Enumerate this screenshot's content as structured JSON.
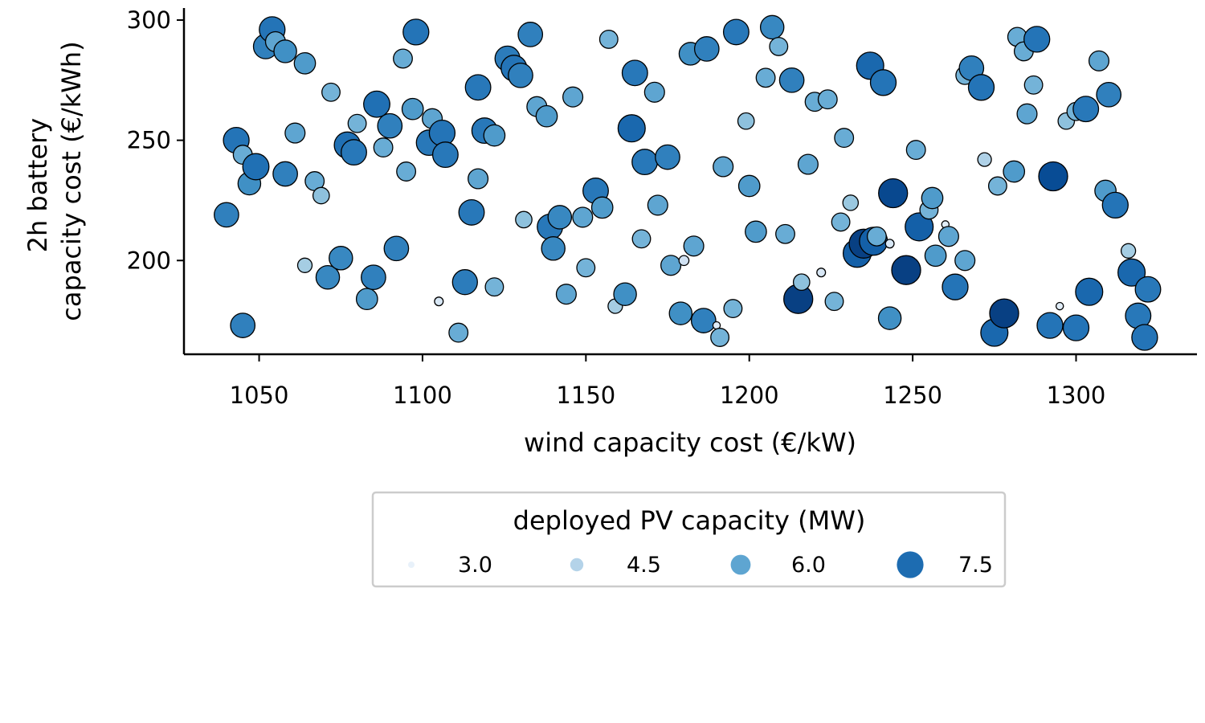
{
  "chart_data": {
    "type": "scatter",
    "xlabel": "wind capacity cost (€/kW)",
    "ylabel": [
      "2h battery",
      "capacity cost (€/kWh)"
    ],
    "xlim": [
      1027,
      1337
    ],
    "ylim": [
      161,
      305
    ],
    "xticks": [
      "1050",
      "1100",
      "1150",
      "1200",
      "1250",
      "1300"
    ],
    "yticks": [
      "200",
      "250",
      "300"
    ],
    "grid": false,
    "legend": {
      "title": "deployed PV capacity (MW)",
      "placement": "below",
      "entries": [
        {
          "label": "3.0",
          "value": 3.0
        },
        {
          "label": "4.5",
          "value": 4.5
        },
        {
          "label": "6.0",
          "value": 6.0
        },
        {
          "label": "7.5",
          "value": 7.5
        }
      ]
    },
    "color_scale": {
      "name": "Blues",
      "min": 2.5,
      "max": 9.0
    },
    "points": [
      [
        1040,
        219,
        7.0
      ],
      [
        1043,
        250,
        7.3
      ],
      [
        1045,
        244,
        5.8
      ],
      [
        1045,
        173,
        7.0
      ],
      [
        1047,
        232,
        6.6
      ],
      [
        1049,
        239,
        7.4
      ],
      [
        1052,
        289,
        7.0
      ],
      [
        1054,
        296,
        7.3
      ],
      [
        1055,
        291,
        6.0
      ],
      [
        1058,
        287,
        6.6
      ],
      [
        1058,
        236,
        7.0
      ],
      [
        1061,
        253,
        6.0
      ],
      [
        1064,
        282,
        6.3
      ],
      [
        1064,
        198,
        4.8
      ],
      [
        1067,
        233,
        5.8
      ],
      [
        1069,
        227,
        5.2
      ],
      [
        1071,
        193,
        6.8
      ],
      [
        1072,
        270,
        5.6
      ],
      [
        1075,
        201,
        6.8
      ],
      [
        1077,
        248,
        7.4
      ],
      [
        1079,
        245,
        7.2
      ],
      [
        1080,
        257,
        5.6
      ],
      [
        1083,
        184,
        6.3
      ],
      [
        1085,
        193,
        7.0
      ],
      [
        1086,
        265,
        7.4
      ],
      [
        1088,
        247,
        5.8
      ],
      [
        1090,
        256,
        7.0
      ],
      [
        1092,
        205,
        7.0
      ],
      [
        1094,
        284,
        5.8
      ],
      [
        1095,
        237,
        5.8
      ],
      [
        1097,
        263,
        6.3
      ],
      [
        1098,
        295,
        7.3
      ],
      [
        1102,
        249,
        7.2
      ],
      [
        1103,
        259,
        6.0
      ],
      [
        1105,
        183,
        3.5
      ],
      [
        1106,
        253,
        7.3
      ],
      [
        1107,
        244,
        7.2
      ],
      [
        1111,
        170,
        5.8
      ],
      [
        1113,
        191,
        7.1
      ],
      [
        1115,
        220,
        7.2
      ],
      [
        1117,
        272,
        7.2
      ],
      [
        1117,
        234,
        6.0
      ],
      [
        1119,
        254,
        7.2
      ],
      [
        1122,
        252,
        6.3
      ],
      [
        1122,
        189,
        5.6
      ],
      [
        1126,
        284,
        7.1
      ],
      [
        1128,
        280,
        7.3
      ],
      [
        1130,
        277,
        7.0
      ],
      [
        1131,
        217,
        5.2
      ],
      [
        1133,
        294,
        7.0
      ],
      [
        1135,
        264,
        6.0
      ],
      [
        1138,
        260,
        6.3
      ],
      [
        1139,
        214,
        7.2
      ],
      [
        1140,
        205,
        6.8
      ],
      [
        1142,
        218,
        6.8
      ],
      [
        1144,
        186,
        6.0
      ],
      [
        1146,
        268,
        6.0
      ],
      [
        1149,
        218,
        6.0
      ],
      [
        1150,
        197,
        5.6
      ],
      [
        1153,
        229,
        7.2
      ],
      [
        1155,
        222,
        6.3
      ],
      [
        1157,
        292,
        5.6
      ],
      [
        1159,
        181,
        4.8
      ],
      [
        1162,
        186,
        6.6
      ],
      [
        1164,
        255,
        7.6
      ],
      [
        1165,
        278,
        7.2
      ],
      [
        1167,
        209,
        5.6
      ],
      [
        1168,
        241,
        7.2
      ],
      [
        1171,
        270,
        6.0
      ],
      [
        1172,
        223,
        6.0
      ],
      [
        1175,
        243,
        7.0
      ],
      [
        1176,
        198,
        6.0
      ],
      [
        1179,
        178,
        6.6
      ],
      [
        1180,
        200,
        3.8
      ],
      [
        1182,
        286,
        6.6
      ],
      [
        1183,
        206,
        6.0
      ],
      [
        1186,
        175,
        7.0
      ],
      [
        1187,
        288,
        7.0
      ],
      [
        1190,
        173,
        3.2
      ],
      [
        1191,
        168,
        5.6
      ],
      [
        1192,
        239,
        6.0
      ],
      [
        1195,
        180,
        5.6
      ],
      [
        1196,
        295,
        7.2
      ],
      [
        1199,
        258,
        5.2
      ],
      [
        1200,
        231,
        6.3
      ],
      [
        1202,
        212,
        6.3
      ],
      [
        1205,
        276,
        5.8
      ],
      [
        1207,
        297,
        6.8
      ],
      [
        1209,
        289,
        5.6
      ],
      [
        1211,
        211,
        5.8
      ],
      [
        1213,
        275,
        7.0
      ],
      [
        1215,
        184,
        8.6
      ],
      [
        1216,
        191,
        5.2
      ],
      [
        1218,
        240,
        6.0
      ],
      [
        1220,
        266,
        5.8
      ],
      [
        1222,
        195,
        3.5
      ],
      [
        1224,
        267,
        5.8
      ],
      [
        1226,
        183,
        5.6
      ],
      [
        1228,
        216,
        5.6
      ],
      [
        1229,
        251,
        5.8
      ],
      [
        1231,
        224,
        5.0
      ],
      [
        1233,
        203,
        7.8
      ],
      [
        1235,
        207,
        8.6
      ],
      [
        1237,
        281,
        7.6
      ],
      [
        1238,
        208,
        7.8
      ],
      [
        1239,
        210,
        5.8
      ],
      [
        1241,
        274,
        7.3
      ],
      [
        1243,
        176,
        6.6
      ],
      [
        1243,
        207,
        3.5
      ],
      [
        1244,
        228,
        8.4
      ],
      [
        1248,
        196,
        8.6
      ],
      [
        1251,
        246,
        5.8
      ],
      [
        1252,
        214,
        7.8
      ],
      [
        1255,
        221,
        5.6
      ],
      [
        1256,
        226,
        6.3
      ],
      [
        1257,
        202,
        6.3
      ],
      [
        1260,
        215,
        3.2
      ],
      [
        1261,
        210,
        6.0
      ],
      [
        1263,
        189,
        7.3
      ],
      [
        1266,
        277,
        5.6
      ],
      [
        1266,
        200,
        6.0
      ],
      [
        1268,
        280,
        7.0
      ],
      [
        1271,
        272,
        7.3
      ],
      [
        1272,
        242,
        4.6
      ],
      [
        1275,
        170,
        7.6
      ],
      [
        1276,
        231,
        5.6
      ],
      [
        1278,
        178,
        8.6
      ],
      [
        1281,
        237,
        6.3
      ],
      [
        1282,
        293,
        5.8
      ],
      [
        1284,
        287,
        5.8
      ],
      [
        1285,
        261,
        6.0
      ],
      [
        1287,
        273,
        5.6
      ],
      [
        1288,
        292,
        7.3
      ],
      [
        1292,
        173,
        7.3
      ],
      [
        1293,
        235,
        8.3
      ],
      [
        1295,
        181,
        3.2
      ],
      [
        1297,
        258,
        5.2
      ],
      [
        1300,
        262,
        5.6
      ],
      [
        1300,
        172,
        7.3
      ],
      [
        1303,
        263,
        7.2
      ],
      [
        1304,
        187,
        7.6
      ],
      [
        1307,
        283,
        6.0
      ],
      [
        1309,
        229,
        6.3
      ],
      [
        1310,
        269,
        7.0
      ],
      [
        1312,
        223,
        7.3
      ],
      [
        1316,
        204,
        4.8
      ],
      [
        1317,
        195,
        7.6
      ],
      [
        1319,
        177,
        7.2
      ],
      [
        1321,
        168,
        7.3
      ],
      [
        1322,
        188,
        7.2
      ]
    ]
  }
}
